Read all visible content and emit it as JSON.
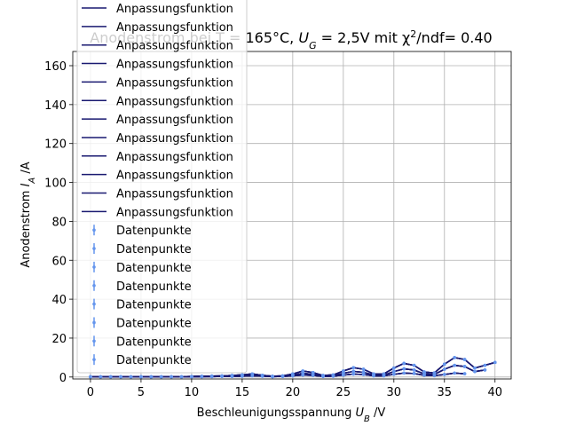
{
  "chart_data": {
    "type": "errorbar_fit",
    "title": [
      "Anodenstrom bei T = 165°C, ",
      "U",
      "G",
      " = 2,5V mit χ",
      "2",
      "/ndf= 0.40"
    ],
    "xlabel": [
      "Beschleunigungsspannung ",
      "U",
      "B",
      " /V"
    ],
    "ylabel": [
      "Anodenstrom ",
      "I",
      "A",
      " /A"
    ],
    "xlim": [
      -1.75,
      41.6
    ],
    "ylim": [
      -1,
      167.3
    ],
    "xticks": [
      0,
      5,
      10,
      15,
      20,
      25,
      30,
      35,
      40
    ],
    "yticks": [
      0,
      20,
      40,
      60,
      80,
      100,
      120,
      140,
      160
    ],
    "grid": true,
    "legend": "upper left",
    "x": [
      0,
      1,
      2,
      3,
      4,
      5,
      6,
      7,
      8,
      9,
      10,
      11,
      12,
      13,
      14,
      15,
      16,
      17,
      18,
      19,
      20,
      21,
      22,
      23,
      24,
      25,
      26,
      27,
      28,
      29,
      30,
      31,
      32,
      33,
      34,
      35,
      36,
      37,
      38,
      39,
      40
    ],
    "series": [
      {
        "name": "Anpassungsfunktion",
        "kind": "line",
        "color": "#191970",
        "values": [
          0.1,
          0.1,
          0.1,
          0.1,
          0.1,
          0.1,
          0.1,
          0.1,
          0.2,
          0.2,
          0.3,
          0.4,
          0.5,
          0.6,
          0.8,
          1.1,
          1.6,
          0.9,
          0.4,
          0.6,
          1.6,
          3.1,
          2.3,
          0.8,
          1.1,
          3.1,
          4.8,
          4,
          1.6,
          1.6,
          4.6,
          7,
          6,
          2.6,
          2.1,
          6.6,
          10,
          9,
          4.6,
          6,
          7.5
        ]
      },
      {
        "name": "Anpassungsfunktion",
        "kind": "line",
        "color": "#191970",
        "values": [
          0.1,
          0.1,
          0.1,
          0.1,
          0.1,
          0.1,
          0.1,
          0.1,
          0.2,
          0.2,
          0.3,
          0.4,
          0.5,
          0.6,
          0.8,
          1.1,
          1.6,
          0.9,
          0.4,
          0.6,
          1.6,
          3.1,
          2.3,
          0.8,
          1.1,
          3.1,
          4.8,
          4,
          1.6,
          1.6,
          4.6,
          7,
          6,
          2.6,
          2.1,
          6.6,
          10,
          9,
          4.6,
          6,
          7.5
        ]
      },
      {
        "name": "Anpassungsfunktion",
        "kind": "line",
        "color": "#191970",
        "values": [
          0.1,
          0.1,
          0.1,
          0.1,
          0.1,
          0.1,
          0.1,
          0.1,
          0.2,
          0.2,
          0.3,
          0.4,
          0.5,
          0.6,
          0.8,
          1.1,
          1.6,
          0.9,
          0.4,
          0.6,
          1.6,
          3.1,
          2.3,
          0.8,
          1.1,
          3.1,
          4.8,
          4,
          1.6,
          1.6,
          4.6,
          7,
          6,
          2.6,
          2.1,
          6.6,
          10,
          9,
          4.6,
          6,
          7.5
        ]
      },
      {
        "name": "Anpassungsfunktion",
        "kind": "line",
        "color": "#191970",
        "values": [
          0.1,
          0.1,
          0.1,
          0.1,
          0.1,
          0.1,
          0.1,
          0.1,
          0.2,
          0.2,
          0.3,
          0.4,
          0.5,
          0.6,
          0.8,
          1.1,
          1.6,
          0.9,
          0.4,
          0.6,
          1.6,
          3.1,
          2.3,
          0.8,
          1.1,
          3.1,
          4.8,
          4,
          1.6,
          1.6,
          4.6,
          7,
          6,
          2.6,
          2.1,
          6.6,
          10,
          9,
          4.6,
          6,
          7.5
        ]
      },
      {
        "name": "Anpassungsfunktion",
        "kind": "line",
        "color": "#191970",
        "values": [
          0.1,
          0.1,
          0.1,
          0.1,
          0.1,
          0.1,
          0.1,
          0.1,
          0.1,
          0.1,
          0.2,
          0.2,
          0.3,
          0.4,
          0.5,
          0.7,
          1,
          0.5,
          0.2,
          0.4,
          1,
          1.9,
          1.4,
          0.5,
          0.7,
          1.9,
          2.9,
          2.4,
          1,
          1,
          2.8,
          4.2,
          3.6,
          1.6,
          1.3,
          4,
          6,
          5.4,
          2.8,
          3.6,
          null
        ]
      },
      {
        "name": "Anpassungsfunktion",
        "kind": "line",
        "color": "#191970",
        "values": [
          0.1,
          0.1,
          0.1,
          0.1,
          0.1,
          0.1,
          0.1,
          0.1,
          0.1,
          0.1,
          0.2,
          0.2,
          0.3,
          0.4,
          0.5,
          0.7,
          1,
          0.5,
          0.2,
          0.4,
          1,
          1.9,
          1.4,
          0.5,
          0.7,
          1.9,
          2.9,
          2.4,
          1,
          1,
          2.8,
          4.2,
          3.6,
          1.6,
          1.3,
          4,
          6,
          5.4,
          2.8,
          3.6,
          null
        ]
      },
      {
        "name": "Anpassungsfunktion",
        "kind": "line",
        "color": "#191970",
        "values": [
          0.1,
          0.1,
          0.1,
          0.1,
          0.1,
          0.1,
          0.1,
          0.1,
          0.1,
          0.1,
          0.2,
          0.2,
          0.3,
          0.4,
          0.5,
          0.7,
          1,
          0.5,
          0.2,
          0.4,
          1,
          1.9,
          1.4,
          0.5,
          0.7,
          1.9,
          2.9,
          2.4,
          1,
          1,
          2.8,
          4.2,
          3.6,
          1.6,
          1.3,
          4,
          6,
          5.4,
          2.8,
          3.6,
          null
        ]
      },
      {
        "name": "Anpassungsfunktion",
        "kind": "line",
        "color": "#191970",
        "values": [
          0.1,
          0.1,
          0.1,
          0.1,
          0.1,
          0.1,
          0.1,
          0.1,
          0.1,
          0.1,
          0.2,
          0.2,
          0.3,
          0.4,
          0.5,
          0.7,
          1,
          0.5,
          0.2,
          0.4,
          1,
          1.9,
          1.4,
          0.5,
          0.7,
          1.9,
          2.9,
          2.4,
          1,
          1,
          2.8,
          4.2,
          3.6,
          1.6,
          1.3,
          4,
          6,
          5.4,
          2.8,
          3.6,
          null
        ]
      },
      {
        "name": "Anpassungsfunktion",
        "kind": "line",
        "color": "#191970",
        "values": [
          0.1,
          0.1,
          0.1,
          0.1,
          0.1,
          0.1,
          0.1,
          0.1,
          0.1,
          0.1,
          0.1,
          0.2,
          0.2,
          0.3,
          0.3,
          0.4,
          0.6,
          0.4,
          0.2,
          0.3,
          0.6,
          1,
          0.8,
          0.3,
          0.4,
          1,
          1.5,
          1.3,
          0.6,
          0.6,
          1.4,
          2,
          1.8,
          0.9,
          0.7,
          1.3,
          2,
          1.7,
          null,
          null,
          null
        ]
      },
      {
        "name": "Anpassungsfunktion",
        "kind": "line",
        "color": "#191970",
        "values": [
          0.1,
          0.1,
          0.1,
          0.1,
          0.1,
          0.1,
          0.1,
          0.1,
          0.1,
          0.1,
          0.1,
          0.2,
          0.2,
          0.3,
          0.3,
          0.4,
          0.6,
          0.4,
          0.2,
          0.3,
          0.6,
          1,
          0.8,
          0.3,
          0.4,
          1,
          1.5,
          1.3,
          0.6,
          0.6,
          1.4,
          2,
          1.8,
          0.9,
          0.7,
          1.3,
          2,
          1.7,
          null,
          null,
          null
        ]
      },
      {
        "name": "Anpassungsfunktion",
        "kind": "line",
        "color": "#191970",
        "values": [
          0.1,
          0.1,
          0.1,
          0.1,
          0.1,
          0.1,
          0.1,
          0.1,
          0.1,
          0.1,
          0.1,
          0.2,
          0.2,
          0.3,
          0.3,
          0.4,
          0.6,
          0.4,
          0.2,
          0.3,
          0.6,
          1,
          0.8,
          0.3,
          0.4,
          1,
          1.5,
          1.3,
          0.6,
          0.6,
          1.4,
          2,
          1.8,
          0.9,
          0.7,
          1.3,
          2,
          1.7,
          null,
          null,
          null
        ]
      },
      {
        "name": "Anpassungsfunktion",
        "kind": "line",
        "color": "#191970",
        "values": [
          0.1,
          0.1,
          0.1,
          0.1,
          0.1,
          0.1,
          0.1,
          0.1,
          0.1,
          0.1,
          0.1,
          0.2,
          0.2,
          0.3,
          0.3,
          0.4,
          0.6,
          0.4,
          0.2,
          0.3,
          0.6,
          1,
          0.8,
          0.3,
          0.4,
          1,
          1.5,
          1.3,
          0.6,
          0.6,
          1.4,
          2,
          1.8,
          0.9,
          0.7,
          1.3,
          2,
          1.7,
          null,
          null,
          null
        ]
      },
      {
        "name": "Datenpunkte",
        "kind": "points",
        "color": "#6495ed",
        "values": [
          0.1,
          0.1,
          0.1,
          0.1,
          0.1,
          0.1,
          0.1,
          0.1,
          0.2,
          0.2,
          0.3,
          0.4,
          0.5,
          0.6,
          0.8,
          1.1,
          1.6,
          0.9,
          0.4,
          0.6,
          1.6,
          3.1,
          2.3,
          0.8,
          1.1,
          3.1,
          4.8,
          4,
          1.6,
          1.6,
          4.6,
          7,
          6,
          2.6,
          2.1,
          6.6,
          10,
          9,
          4.6,
          6,
          7.5
        ]
      },
      {
        "name": "Datenpunkte",
        "kind": "points",
        "color": "#6495ed",
        "values": [
          0.1,
          0.1,
          0.1,
          0.1,
          0.1,
          0.1,
          0.1,
          0.1,
          0.2,
          0.2,
          0.3,
          0.4,
          0.5,
          0.6,
          0.8,
          1.1,
          1.6,
          0.9,
          0.4,
          0.6,
          1.6,
          3.1,
          2.3,
          0.8,
          1.1,
          3.1,
          4.8,
          4,
          1.6,
          1.6,
          4.6,
          7,
          6,
          2.6,
          2.1,
          6.6,
          10,
          9,
          4.6,
          6,
          7.5
        ]
      },
      {
        "name": "Datenpunkte",
        "kind": "points",
        "color": "#6495ed",
        "values": [
          0.1,
          0.1,
          0.1,
          0.1,
          0.1,
          0.1,
          0.1,
          0.1,
          0.2,
          0.2,
          0.3,
          0.4,
          0.5,
          0.6,
          0.8,
          1.1,
          1.6,
          0.9,
          0.4,
          0.6,
          1.6,
          3.1,
          2.3,
          0.8,
          1.1,
          3.1,
          4.8,
          4,
          1.6,
          1.6,
          4.6,
          7,
          6,
          2.6,
          2.1,
          6.6,
          10,
          9,
          4.6,
          6,
          7.5
        ]
      },
      {
        "name": "Datenpunkte",
        "kind": "points",
        "color": "#6495ed",
        "values": [
          0.1,
          0.1,
          0.1,
          0.1,
          0.1,
          0.1,
          0.1,
          0.1,
          0.1,
          0.1,
          0.2,
          0.2,
          0.3,
          0.4,
          0.5,
          0.7,
          1,
          0.5,
          0.2,
          0.4,
          1,
          1.9,
          1.4,
          0.5,
          0.7,
          1.9,
          2.9,
          2.4,
          1,
          1,
          2.8,
          4.2,
          3.6,
          1.6,
          1.3,
          4,
          6,
          5.4,
          2.8,
          3.6,
          null
        ]
      },
      {
        "name": "Datenpunkte",
        "kind": "points",
        "color": "#6495ed",
        "values": [
          0.1,
          0.1,
          0.1,
          0.1,
          0.1,
          0.1,
          0.1,
          0.1,
          0.1,
          0.1,
          0.2,
          0.2,
          0.3,
          0.4,
          0.5,
          0.7,
          1,
          0.5,
          0.2,
          0.4,
          1,
          1.9,
          1.4,
          0.5,
          0.7,
          1.9,
          2.9,
          2.4,
          1,
          1,
          2.8,
          4.2,
          3.6,
          1.6,
          1.3,
          4,
          6,
          5.4,
          2.8,
          3.6,
          null
        ]
      },
      {
        "name": "Datenpunkte",
        "kind": "points",
        "color": "#6495ed",
        "values": [
          0.1,
          0.1,
          0.1,
          0.1,
          0.1,
          0.1,
          0.1,
          0.1,
          0.1,
          0.1,
          0.2,
          0.2,
          0.3,
          0.4,
          0.5,
          0.7,
          1,
          0.5,
          0.2,
          0.4,
          1,
          1.9,
          1.4,
          0.5,
          0.7,
          1.9,
          2.9,
          2.4,
          1,
          1,
          2.8,
          4.2,
          3.6,
          1.6,
          1.3,
          4,
          6,
          5.4,
          2.8,
          3.6,
          null
        ]
      },
      {
        "name": "Datenpunkte",
        "kind": "points",
        "color": "#6495ed",
        "values": [
          0.1,
          0.1,
          0.1,
          0.1,
          0.1,
          0.1,
          0.1,
          0.1,
          0.1,
          0.1,
          0.1,
          0.2,
          0.2,
          0.3,
          0.3,
          0.4,
          0.6,
          0.4,
          0.2,
          0.3,
          0.6,
          1,
          0.8,
          0.3,
          0.4,
          1,
          1.5,
          1.3,
          0.6,
          0.6,
          1.4,
          2,
          1.8,
          0.9,
          0.7,
          1.3,
          2,
          1.7,
          null,
          null,
          null
        ]
      },
      {
        "name": "Datenpunkte",
        "kind": "points",
        "color": "#6495ed",
        "values": [
          0.1,
          0.1,
          0.1,
          0.1,
          0.1,
          0.1,
          0.1,
          0.1,
          0.1,
          0.1,
          0.1,
          0.2,
          0.2,
          0.3,
          0.3,
          0.4,
          0.6,
          0.4,
          0.2,
          0.3,
          0.6,
          1,
          0.8,
          0.3,
          0.4,
          1,
          1.5,
          1.3,
          0.6,
          0.6,
          1.4,
          2,
          1.8,
          0.9,
          0.7,
          1.3,
          2,
          1.7,
          null,
          null,
          null
        ]
      }
    ]
  }
}
